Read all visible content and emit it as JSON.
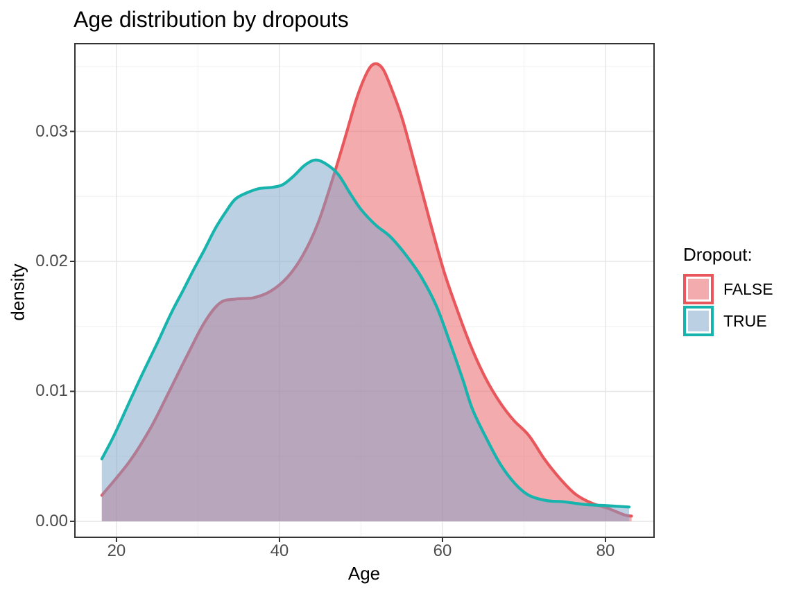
{
  "title": "Age distribution by dropouts",
  "axes": {
    "x_label": "Age",
    "y_label": "density"
  },
  "legend": {
    "title": "Dropout:",
    "items": [
      {
        "label": "FALSE",
        "stroke": "#E8575C",
        "fill": "#F4ABAE"
      },
      {
        "label": "TRUE",
        "stroke": "#17B3AD",
        "fill": "#BCD0E4"
      }
    ]
  },
  "chart_data": {
    "type": "area",
    "title": "Age distribution by dropouts",
    "xlabel": "Age",
    "ylabel": "density",
    "xlim": [
      14.9,
      85.96
    ],
    "ylim": [
      -0.00123,
      0.03675
    ],
    "grid": true,
    "legend_position": "right",
    "x_ticks": [
      {
        "value": 20,
        "label": "20"
      },
      {
        "value": 40,
        "label": "40"
      },
      {
        "value": 60,
        "label": "60"
      },
      {
        "value": 80,
        "label": "80"
      }
    ],
    "x_minor": [
      30,
      50,
      70
    ],
    "y_ticks": [
      {
        "value": 0,
        "label": "0.00"
      },
      {
        "value": 0.01,
        "label": "0.01"
      },
      {
        "value": 0.02,
        "label": "0.02"
      },
      {
        "value": 0.03,
        "label": "0.03"
      }
    ],
    "y_minor": [
      0.005,
      0.015,
      0.025,
      0.035
    ],
    "series": [
      {
        "name": "FALSE",
        "stroke": "#E8575C",
        "fill": "#E9575D",
        "fill_opacity": 0.5,
        "points": [
          [
            18.2,
            0.002
          ],
          [
            21.6,
            0.0046
          ],
          [
            24.2,
            0.0072
          ],
          [
            26.4,
            0.0099
          ],
          [
            28.7,
            0.0128
          ],
          [
            30.8,
            0.0153
          ],
          [
            32.7,
            0.0168
          ],
          [
            34.6,
            0.0171
          ],
          [
            36.8,
            0.0172
          ],
          [
            38.9,
            0.0177
          ],
          [
            41.0,
            0.0188
          ],
          [
            42.9,
            0.0205
          ],
          [
            44.7,
            0.0229
          ],
          [
            46.4,
            0.0261
          ],
          [
            48.0,
            0.0294
          ],
          [
            49.5,
            0.0326
          ],
          [
            50.8,
            0.0346
          ],
          [
            51.7,
            0.0352
          ],
          [
            52.7,
            0.0348
          ],
          [
            53.8,
            0.0332
          ],
          [
            55.1,
            0.0309
          ],
          [
            56.8,
            0.027
          ],
          [
            58.5,
            0.023
          ],
          [
            60.2,
            0.0192
          ],
          [
            61.9,
            0.0161
          ],
          [
            63.6,
            0.0133
          ],
          [
            65.3,
            0.011
          ],
          [
            67.0,
            0.0092
          ],
          [
            68.7,
            0.0078
          ],
          [
            70.6,
            0.0066
          ],
          [
            72.5,
            0.0048
          ],
          [
            74.4,
            0.0033
          ],
          [
            76.3,
            0.0021
          ],
          [
            78.3,
            0.0014
          ],
          [
            80.3,
            0.001
          ],
          [
            82.3,
            0.0005
          ],
          [
            83.2,
            0.0004
          ]
        ]
      },
      {
        "name": "TRUE",
        "stroke": "#17B3AD",
        "fill": "#79A1C9",
        "fill_opacity": 0.5,
        "points": [
          [
            18.2,
            0.0048
          ],
          [
            19.7,
            0.0066
          ],
          [
            21.6,
            0.0092
          ],
          [
            23.3,
            0.0115
          ],
          [
            25.0,
            0.0137
          ],
          [
            26.7,
            0.016
          ],
          [
            28.2,
            0.0178
          ],
          [
            29.5,
            0.0194
          ],
          [
            30.8,
            0.0209
          ],
          [
            32.1,
            0.0225
          ],
          [
            33.4,
            0.0238
          ],
          [
            34.6,
            0.0248
          ],
          [
            36.1,
            0.0253
          ],
          [
            37.5,
            0.0256
          ],
          [
            39.1,
            0.0257
          ],
          [
            40.4,
            0.0259
          ],
          [
            41.8,
            0.0266
          ],
          [
            43.1,
            0.0274
          ],
          [
            44.4,
            0.0278
          ],
          [
            45.7,
            0.0275
          ],
          [
            47.2,
            0.0267
          ],
          [
            48.7,
            0.0252
          ],
          [
            50.0,
            0.024
          ],
          [
            51.8,
            0.0228
          ],
          [
            53.6,
            0.0219
          ],
          [
            55.5,
            0.0205
          ],
          [
            57.4,
            0.0188
          ],
          [
            59.3,
            0.0165
          ],
          [
            61.0,
            0.0136
          ],
          [
            62.5,
            0.0109
          ],
          [
            63.7,
            0.0086
          ],
          [
            65.3,
            0.0065
          ],
          [
            67.1,
            0.0044
          ],
          [
            68.9,
            0.0029
          ],
          [
            70.6,
            0.002
          ],
          [
            72.7,
            0.0016
          ],
          [
            74.9,
            0.0015
          ],
          [
            77.4,
            0.0013
          ],
          [
            80.2,
            0.0012
          ],
          [
            82.9,
            0.0011
          ]
        ]
      }
    ]
  }
}
